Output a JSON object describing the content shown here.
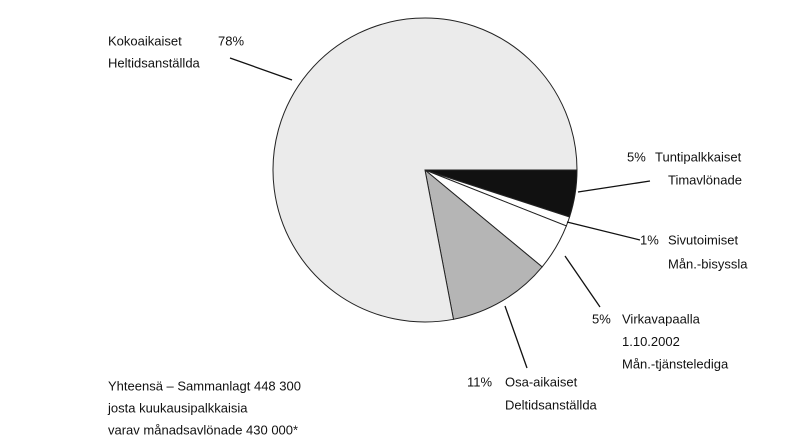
{
  "chart_data": {
    "type": "pie",
    "categories": [
      [
        "Kokoaikaiset",
        "Heltidsanställda"
      ],
      [
        "Tuntipalkkaiset",
        "Timavlönade"
      ],
      [
        "Sivutoimiset",
        "Mån.-bisyssla"
      ],
      [
        "Virkavapaalla",
        "1.10.2002",
        "Mån.-tjänstelediga"
      ],
      [
        "Osa-aikaiset",
        "Deltidsanställda"
      ]
    ],
    "values": [
      78,
      5,
      1,
      5,
      11
    ],
    "value_labels": [
      "78%",
      "5%",
      "1%",
      "5%",
      "11%"
    ],
    "colors": [
      "#ebebeb",
      "#111111",
      "#ffffff",
      "#ffffff",
      "#b5b5b5"
    ],
    "note": [
      "Yhteensä – Sammanlagt 448 300",
      "josta kuukausipalkkaisia",
      "varav månadsavlönade  430 000*"
    ]
  }
}
